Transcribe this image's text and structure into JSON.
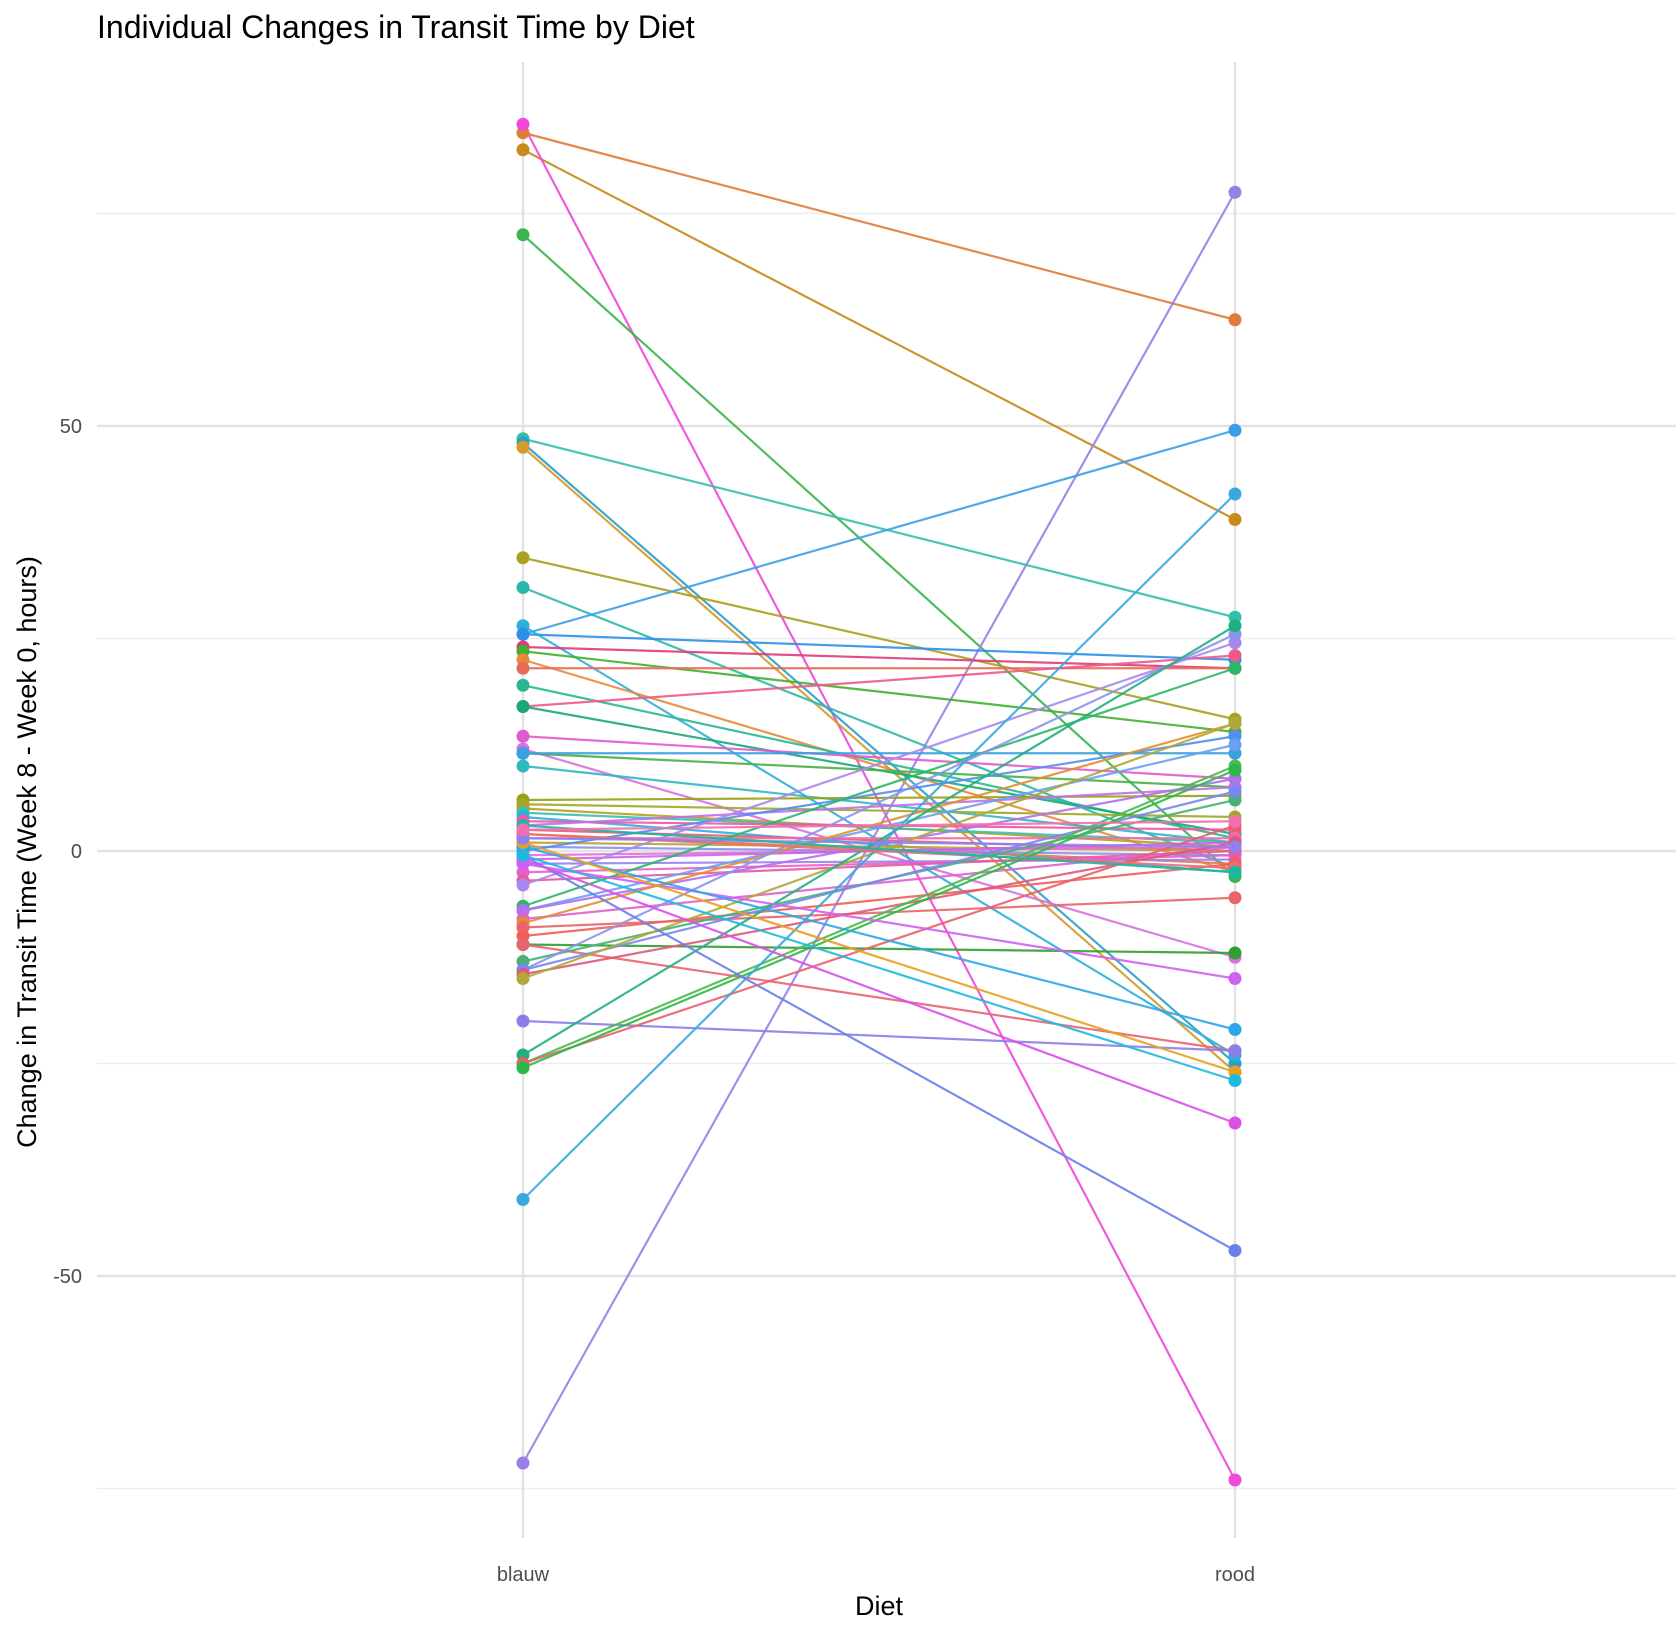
{
  "chart_data": {
    "type": "line",
    "title": "Individual Changes in Transit Time by Diet",
    "xlabel": "Diet",
    "ylabel": "Change in Transit Time (Week 8 - Week 0, hours)",
    "categories": [
      "blauw",
      "rood"
    ],
    "ylim": [
      -75,
      95
    ],
    "yticks": [
      -50,
      0,
      50
    ],
    "grid": true,
    "legend": "none",
    "series": [
      {
        "values": [
          84.5,
          62.5
        ],
        "color": "#e07b3a"
      },
      {
        "values": [
          82.5,
          39.0
        ],
        "color": "#c88a1c"
      },
      {
        "values": [
          85.5,
          -74.0
        ],
        "color": "#f048d8"
      },
      {
        "values": [
          72.5,
          -3.0
        ],
        "color": "#3bb54a"
      },
      {
        "values": [
          -72.0,
          77.5
        ],
        "color": "#9a7fe8"
      },
      {
        "values": [
          48.5,
          27.5
        ],
        "color": "#34c0a8"
      },
      {
        "values": [
          48.0,
          -25.0
        ],
        "color": "#2aa0c8"
      },
      {
        "values": [
          47.5,
          -26.0
        ],
        "color": "#d49a2a"
      },
      {
        "values": [
          34.5,
          15.5
        ],
        "color": "#a8a020"
      },
      {
        "values": [
          31.0,
          -2.0
        ],
        "color": "#2cb8a8"
      },
      {
        "values": [
          26.5,
          -24.0
        ],
        "color": "#2fb0d8"
      },
      {
        "values": [
          25.5,
          49.5
        ],
        "color": "#3a9ee8"
      },
      {
        "values": [
          25.5,
          22.5
        ],
        "color": "#2e8fe8"
      },
      {
        "values": [
          24.0,
          21.5
        ],
        "color": "#e03c78"
      },
      {
        "values": [
          23.5,
          14.0
        ],
        "color": "#40b030"
      },
      {
        "values": [
          22.5,
          -2.5
        ],
        "color": "#e88a3a"
      },
      {
        "values": [
          21.5,
          21.5
        ],
        "color": "#e86a5a"
      },
      {
        "values": [
          19.5,
          1.5
        ],
        "color": "#28b890"
      },
      {
        "values": [
          17.0,
          23.0
        ],
        "color": "#ec5a8a"
      },
      {
        "values": [
          17.0,
          2.0
        ],
        "color": "#1aa878"
      },
      {
        "values": [
          13.5,
          8.5
        ],
        "color": "#e05ad0"
      },
      {
        "values": [
          12.0,
          -12.5
        ],
        "color": "#d870e0"
      },
      {
        "values": [
          11.5,
          7.5
        ],
        "color": "#48b048"
      },
      {
        "values": [
          11.5,
          11.5
        ],
        "color": "#3aa0e0"
      },
      {
        "values": [
          10.0,
          1.0
        ],
        "color": "#30b8c0"
      },
      {
        "values": [
          6.0,
          6.5
        ],
        "color": "#98a010"
      },
      {
        "values": [
          5.5,
          4.0
        ],
        "color": "#a0a828"
      },
      {
        "values": [
          5.0,
          0.5
        ],
        "color": "#b5a020"
      },
      {
        "values": [
          4.5,
          1.0
        ],
        "color": "#38c0b0"
      },
      {
        "values": [
          4.0,
          -2.5
        ],
        "color": "#2ab0e0"
      },
      {
        "values": [
          3.5,
          2.5
        ],
        "color": "#f058a0"
      },
      {
        "values": [
          3.0,
          7.5
        ],
        "color": "#c070e8"
      },
      {
        "values": [
          2.5,
          0.0
        ],
        "color": "#e85c6c"
      },
      {
        "values": [
          2.0,
          -1.5
        ],
        "color": "#e87850"
      },
      {
        "values": [
          1.5,
          1.5
        ],
        "color": "#f06aa8"
      },
      {
        "values": [
          1.0,
          0.0
        ],
        "color": "#c0a030"
      },
      {
        "values": [
          0.5,
          -0.5
        ],
        "color": "#8890f0"
      },
      {
        "values": [
          0.0,
          13.5
        ],
        "color": "#5090f0"
      },
      {
        "values": [
          -0.5,
          0.5
        ],
        "color": "#e070d8"
      },
      {
        "values": [
          -1.0,
          1.0
        ],
        "color": "#d060e8"
      },
      {
        "values": [
          -1.5,
          -1.0
        ],
        "color": "#9a80f0"
      },
      {
        "values": [
          -2.5,
          -0.5
        ],
        "color": "#e860c8"
      },
      {
        "values": [
          -3.5,
          0.0
        ],
        "color": "#e85aa0"
      },
      {
        "values": [
          -4.0,
          24.5
        ],
        "color": "#a888ec"
      },
      {
        "values": [
          -6.5,
          21.5
        ],
        "color": "#28b868"
      },
      {
        "values": [
          -7.0,
          12.5
        ],
        "color": "#6aa0f0"
      },
      {
        "values": [
          -7.0,
          8.5
        ],
        "color": "#b070f0"
      },
      {
        "values": [
          -8.0,
          0.5
        ],
        "color": "#e060d0"
      },
      {
        "values": [
          -8.5,
          15.0
        ],
        "color": "#e09030"
      },
      {
        "values": [
          -9.0,
          -5.5
        ],
        "color": "#e8666a"
      },
      {
        "values": [
          -10.0,
          -1.5
        ],
        "color": "#f0605a"
      },
      {
        "values": [
          -11.0,
          -12.0
        ],
        "color": "#30a030"
      },
      {
        "values": [
          -11.0,
          -23.5
        ],
        "color": "#e86470"
      },
      {
        "values": [
          -13.0,
          6.0
        ],
        "color": "#48b078"
      },
      {
        "values": [
          -14.0,
          25.5
        ],
        "color": "#8c94ec"
      },
      {
        "values": [
          -14.0,
          7.0
        ],
        "color": "#7888f0"
      },
      {
        "values": [
          -14.5,
          1.0
        ],
        "color": "#e05878"
      },
      {
        "values": [
          -15.0,
          15.0
        ],
        "color": "#b0a838"
      },
      {
        "values": [
          -20.0,
          -23.5
        ],
        "color": "#8a7ee8"
      },
      {
        "values": [
          -24.0,
          26.5
        ],
        "color": "#20b080"
      },
      {
        "values": [
          -25.0,
          10.0
        ],
        "color": "#50b850"
      },
      {
        "values": [
          -25.0,
          3.0
        ],
        "color": "#e8606a"
      },
      {
        "values": [
          -25.5,
          9.5
        ],
        "color": "#2cb848"
      },
      {
        "values": [
          -41.0,
          42.0
        ],
        "color": "#38a8e0"
      },
      {
        "values": [
          -0.5,
          -47.0
        ],
        "color": "#6c80ea"
      },
      {
        "values": [
          -1.0,
          -32.0
        ],
        "color": "#d850e8"
      },
      {
        "values": [
          -1.5,
          -15.0
        ],
        "color": "#d060f0"
      },
      {
        "values": [
          0.5,
          -21.0
        ],
        "color": "#2da6e8"
      },
      {
        "values": [
          1.0,
          -26.0
        ],
        "color": "#e8a020"
      },
      {
        "values": [
          -0.5,
          -27.0
        ],
        "color": "#20b8e0"
      },
      {
        "values": [
          2.0,
          -2.0
        ],
        "color": "#e87070"
      },
      {
        "values": [
          1.5,
          0.5
        ],
        "color": "#9080f0"
      },
      {
        "values": [
          3.0,
          -2.5
        ],
        "color": "#1ab8a0"
      },
      {
        "values": [
          2.5,
          3.5
        ],
        "color": "#f070b0"
      }
    ]
  }
}
